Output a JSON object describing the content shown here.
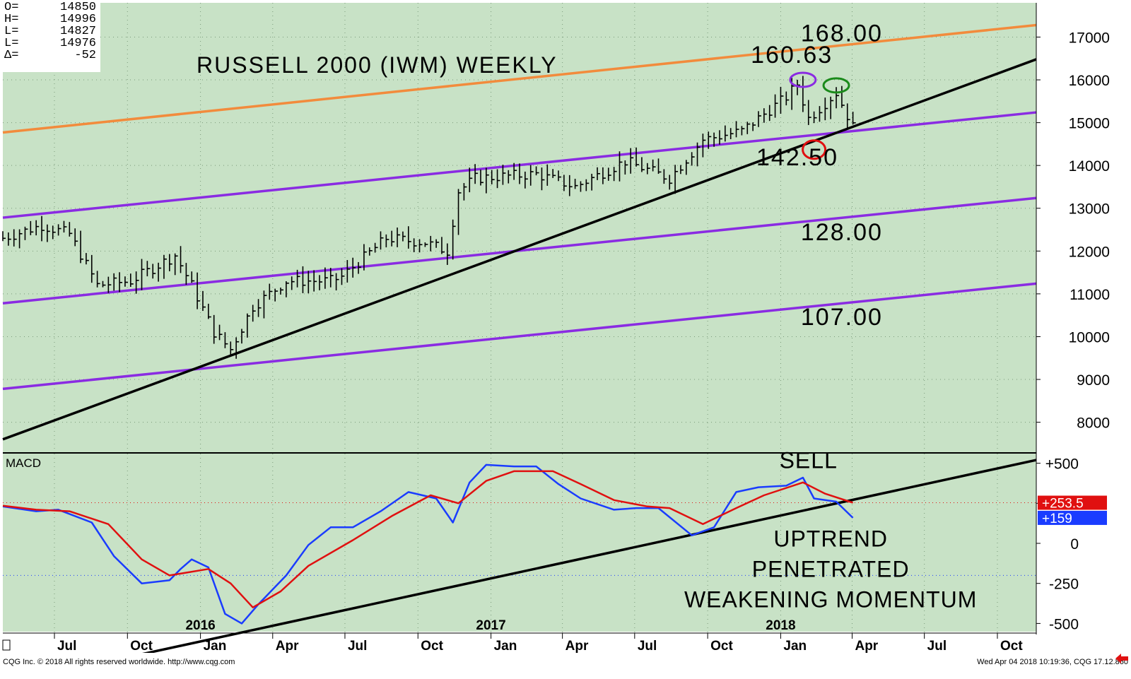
{
  "ohlc_box": {
    "rows": [
      {
        "label": "O=",
        "value": "14850"
      },
      {
        "label": "H=",
        "value": "14996"
      },
      {
        "label": "L=",
        "value": "14827"
      },
      {
        "label": "L=",
        "value": "14976"
      },
      {
        "label": "Δ=",
        "value": "-52"
      }
    ]
  },
  "footer": {
    "left": "CQG Inc. © 2018 All rights reserved worldwide. http://www.cqg.com",
    "right": "Wed Apr 04 2018 10:19:36, CQG 17.12.860"
  },
  "colors": {
    "panel_bg": "#c8e2c6",
    "bar": "#000000",
    "channel_upper": "#f28b3c",
    "channel_purple": "#8a2be2",
    "trendline": "#000000",
    "macd_line": "#1a3cff",
    "signal_line": "#e01010",
    "annotation_red": "#e01010",
    "annotation_green": "#1a8a1a",
    "annotation_purple": "#8a2be2"
  },
  "chart_data": [
    {
      "type": "ohlc",
      "title": "RUSSELL 2000 (IWM) WEEKLY",
      "x_axis": {
        "tick_labels": [
          "Jul",
          "Oct",
          "Jan",
          "Apr",
          "Jul",
          "Oct",
          "Jan",
          "Apr",
          "Jul",
          "Oct",
          "Jan",
          "Apr",
          "Jul",
          "Oct"
        ],
        "year_labels": [
          "2016",
          "2017",
          "2018"
        ],
        "range": [
          "2015-04-27",
          "2018-11-19"
        ]
      },
      "y_axis": {
        "tick_labels": [
          "8000",
          "9000",
          "10000",
          "11000",
          "12000",
          "13000",
          "14000",
          "15000",
          "16000",
          "17000"
        ],
        "range": [
          7300,
          17800
        ]
      },
      "grid": true,
      "price_anchors": [
        [
          "2015-04-27",
          12300
        ],
        [
          "2015-06-15",
          12600
        ],
        [
          "2015-07-20",
          12400
        ],
        [
          "2015-08-24",
          11200
        ],
        [
          "2015-10-05",
          11300
        ],
        [
          "2015-11-30",
          11900
        ],
        [
          "2015-12-21",
          11200
        ],
        [
          "2016-01-18",
          10100
        ],
        [
          "2016-02-08",
          9700
        ],
        [
          "2016-03-07",
          10700
        ],
        [
          "2016-04-18",
          11300
        ],
        [
          "2016-06-13",
          11300
        ],
        [
          "2016-06-27",
          11400
        ],
        [
          "2016-08-22",
          12300
        ],
        [
          "2016-10-10",
          12200
        ],
        [
          "2016-11-07",
          12000
        ],
        [
          "2016-11-21",
          13400
        ],
        [
          "2016-12-12",
          13700
        ],
        [
          "2017-02-27",
          13800
        ],
        [
          "2017-04-17",
          13500
        ],
        [
          "2017-06-19",
          14100
        ],
        [
          "2017-08-14",
          13700
        ],
        [
          "2017-09-25",
          14600
        ],
        [
          "2017-11-13",
          14800
        ],
        [
          "2018-01-08",
          15600
        ],
        [
          "2018-01-22",
          15900
        ],
        [
          "2018-02-05",
          15100
        ],
        [
          "2018-03-12",
          15700
        ],
        [
          "2018-04-02",
          14900
        ]
      ],
      "channel_lines": [
        {
          "role": "upper",
          "color": "orange",
          "start": [
            "2015-04-27",
            14770
          ],
          "end": [
            "2018-11-19",
            17280
          ]
        },
        {
          "role": "middle",
          "color": "purple",
          "start": [
            "2015-04-27",
            12780
          ],
          "end": [
            "2018-11-19",
            15240
          ]
        },
        {
          "role": "lower",
          "color": "purple",
          "start": [
            "2015-04-27",
            10780
          ],
          "end": [
            "2018-11-19",
            13240
          ]
        },
        {
          "role": "bottom",
          "color": "purple",
          "start": [
            "2015-04-27",
            8780
          ],
          "end": [
            "2018-11-19",
            11240
          ]
        },
        {
          "role": "uptrend",
          "color": "black",
          "start": [
            "2015-04-27",
            7600
          ],
          "end": [
            "2018-11-19",
            16480
          ]
        }
      ],
      "annotations": [
        {
          "text": "168.00",
          "x": "2018-03-19",
          "y": 16900
        },
        {
          "text": "160.63",
          "x": "2018-01-15",
          "y": 16400
        },
        {
          "text": "142.50",
          "x": "2018-01-22",
          "y": 14000
        },
        {
          "text": "128.00",
          "x": "2018-03-19",
          "y": 12250
        },
        {
          "text": "107.00",
          "x": "2018-03-19",
          "y": 10270
        }
      ],
      "markers": [
        {
          "shape": "ellipse",
          "color": "purple",
          "x": "2018-01-29",
          "y": 16000
        },
        {
          "shape": "ellipse",
          "color": "green",
          "x": "2018-03-12",
          "y": 15870
        },
        {
          "shape": "ellipse",
          "color": "red",
          "x": "2018-02-12",
          "y": 14370
        }
      ]
    },
    {
      "type": "line",
      "title": "MACD",
      "y_axis": {
        "tick_labels": [
          "+500",
          "+250",
          "0",
          "-250",
          "-500"
        ],
        "range": [
          -560,
          560
        ]
      },
      "reference_lines": [
        {
          "value": 253.5,
          "color": "red",
          "style": "dotted"
        },
        {
          "value": -200,
          "color": "blue",
          "style": "dotted"
        }
      ],
      "value_labels": [
        {
          "text": "+253.5",
          "color": "red"
        },
        {
          "text": "+159",
          "color": "blue"
        }
      ],
      "series": [
        {
          "name": "MACD",
          "color": "blue",
          "points": [
            [
              "2015-04-27",
              230
            ],
            [
              "2015-06-08",
              200
            ],
            [
              "2015-07-06",
              210
            ],
            [
              "2015-08-17",
              130
            ],
            [
              "2015-09-14",
              -80
            ],
            [
              "2015-10-19",
              -250
            ],
            [
              "2015-11-23",
              -230
            ],
            [
              "2015-12-07",
              -160
            ],
            [
              "2015-12-21",
              -100
            ],
            [
              "2016-01-11",
              -150
            ],
            [
              "2016-02-01",
              -440
            ],
            [
              "2016-02-22",
              -500
            ],
            [
              "2016-03-14",
              -380
            ],
            [
              "2016-04-18",
              -200
            ],
            [
              "2016-05-16",
              -10
            ],
            [
              "2016-06-13",
              100
            ],
            [
              "2016-07-11",
              100
            ],
            [
              "2016-08-15",
              200
            ],
            [
              "2016-09-19",
              320
            ],
            [
              "2016-10-24",
              280
            ],
            [
              "2016-11-14",
              130
            ],
            [
              "2016-12-05",
              380
            ],
            [
              "2016-12-26",
              490
            ],
            [
              "2017-01-30",
              480
            ],
            [
              "2017-02-27",
              480
            ],
            [
              "2017-03-27",
              370
            ],
            [
              "2017-04-24",
              280
            ],
            [
              "2017-06-05",
              210
            ],
            [
              "2017-07-03",
              220
            ],
            [
              "2017-07-31",
              220
            ],
            [
              "2017-09-11",
              50
            ],
            [
              "2017-10-09",
              100
            ],
            [
              "2017-11-06",
              320
            ],
            [
              "2017-12-04",
              350
            ],
            [
              "2018-01-08",
              360
            ],
            [
              "2018-01-29",
              410
            ],
            [
              "2018-02-12",
              280
            ],
            [
              "2018-03-12",
              260
            ],
            [
              "2018-04-02",
              159
            ]
          ]
        },
        {
          "name": "Signal",
          "color": "red",
          "points": [
            [
              "2015-04-27",
              235
            ],
            [
              "2015-06-08",
              210
            ],
            [
              "2015-07-20",
              200
            ],
            [
              "2015-09-07",
              120
            ],
            [
              "2015-10-19",
              -100
            ],
            [
              "2015-11-23",
              -200
            ],
            [
              "2016-01-11",
              -160
            ],
            [
              "2016-02-08",
              -250
            ],
            [
              "2016-03-07",
              -400
            ],
            [
              "2016-04-11",
              -300
            ],
            [
              "2016-05-16",
              -140
            ],
            [
              "2016-07-11",
              20
            ],
            [
              "2016-08-29",
              170
            ],
            [
              "2016-10-17",
              300
            ],
            [
              "2016-11-21",
              250
            ],
            [
              "2016-12-26",
              390
            ],
            [
              "2017-01-30",
              450
            ],
            [
              "2017-03-20",
              450
            ],
            [
              "2017-04-24",
              370
            ],
            [
              "2017-06-05",
              270
            ],
            [
              "2017-07-17",
              230
            ],
            [
              "2017-08-14",
              220
            ],
            [
              "2017-09-25",
              120
            ],
            [
              "2017-11-06",
              220
            ],
            [
              "2017-12-11",
              300
            ],
            [
              "2018-01-29",
              380
            ],
            [
              "2018-02-26",
              310
            ],
            [
              "2018-04-02",
              253.5
            ]
          ]
        }
      ],
      "trendline": {
        "start": [
          "2015-04-27",
          -880
        ],
        "end": [
          "2018-11-19",
          520
        ]
      },
      "annotations": [
        {
          "text": "SELL",
          "x": "2018-02-05",
          "y": 470
        },
        {
          "text": "UPTREND",
          "x": "2018-03-05",
          "y": -20
        },
        {
          "text": "PENETRATED",
          "x": "2018-03-05",
          "y": -210
        },
        {
          "text": "WEAKENING MOMENTUM",
          "x": "2018-03-05",
          "y": -400
        }
      ]
    }
  ]
}
